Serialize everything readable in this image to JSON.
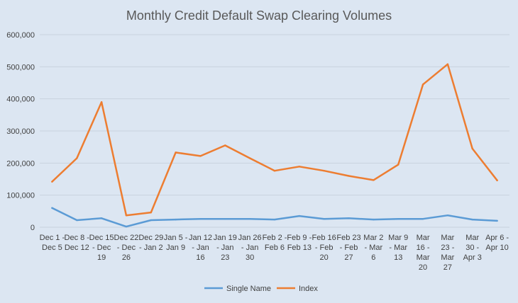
{
  "chart_data": {
    "type": "line",
    "title": "Monthly Credit Default Swap Clearing Volumes",
    "xlabel": "",
    "ylabel": "",
    "ylim": [
      0,
      600000
    ],
    "yticks": [
      "0",
      "100,000",
      "200,000",
      "300,000",
      "400,000",
      "500,000",
      "600,000"
    ],
    "categories": [
      [
        "Dec 1 -",
        "Dec 5"
      ],
      [
        "Dec 8 -",
        "Dec 12"
      ],
      [
        "Dec 15",
        "- Dec",
        "19"
      ],
      [
        "Dec 22",
        "- Dec",
        "26"
      ],
      [
        "Dec 29",
        "- Jan 2"
      ],
      [
        "Jan 5 -",
        "Jan 9"
      ],
      [
        "Jan 12",
        "- Jan",
        "16"
      ],
      [
        "Jan 19",
        "- Jan",
        "23"
      ],
      [
        "Jan 26",
        "- Jan",
        "30"
      ],
      [
        "Feb 2 -",
        "Feb 6"
      ],
      [
        "Feb 9 -",
        "Feb 13"
      ],
      [
        "Feb 16",
        "- Feb",
        "20"
      ],
      [
        "Feb 23",
        "- Feb",
        "27"
      ],
      [
        "Mar 2",
        "- Mar",
        "6"
      ],
      [
        "Mar 9",
        "- Mar",
        "13"
      ],
      [
        "Mar",
        "16 -",
        "Mar",
        "20"
      ],
      [
        "Mar",
        "23 -",
        "Mar",
        "27"
      ],
      [
        "Mar",
        "30 -",
        "Apr 3"
      ],
      [
        "Apr 6 -",
        "Apr 10"
      ]
    ],
    "series": [
      {
        "name": "Single Name",
        "color": "#5b9bd5",
        "values": [
          60000,
          22000,
          28000,
          2000,
          22000,
          24000,
          26000,
          26000,
          26000,
          24000,
          35000,
          26000,
          28000,
          24000,
          26000,
          26000,
          37000,
          24000,
          20000
        ]
      },
      {
        "name": "Index",
        "color": "#ed7d31",
        "values": [
          142000,
          215000,
          390000,
          37000,
          46000,
          233000,
          222000,
          255000,
          215000,
          176000,
          189000,
          176000,
          160000,
          147000,
          195000,
          445000,
          508000,
          245000,
          146000
        ]
      }
    ],
    "grid": true,
    "legend_position": "bottom"
  }
}
